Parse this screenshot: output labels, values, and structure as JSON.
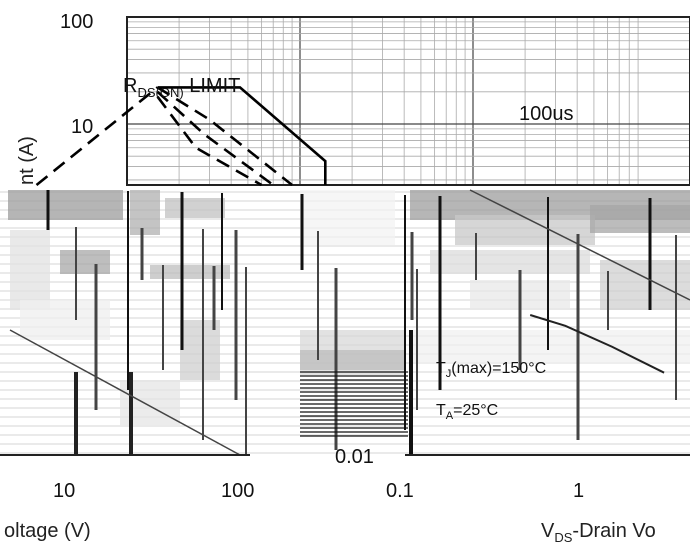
{
  "chart_data": [
    {
      "type": "line",
      "scale": "log-log",
      "grid": true,
      "legend": "none",
      "xlabel": "",
      "ylabel": "nt (A)",
      "xlim": [
        0.1,
        100
      ],
      "ylim": [
        0.01,
        100
      ],
      "y_tick_labels": [
        "100",
        "10"
      ],
      "annotations": [
        {
          "text": "R",
          "sub": "DS(ON)",
          "after": " LIMIT"
        },
        {
          "text": "100us"
        }
      ],
      "series": [
        {
          "style": "solid",
          "x": [
            0.15,
            0.45,
            1.4,
            1.4
          ],
          "y": [
            22,
            22,
            4.5,
            1
          ]
        },
        {
          "style": "dashed",
          "x": [
            0.03,
            0.15
          ],
          "y": [
            0.6,
            22
          ]
        },
        {
          "style": "dashed",
          "x": [
            0.15,
            0.3,
            0.9
          ],
          "y": [
            22,
            11,
            1
          ]
        },
        {
          "style": "dashed",
          "x": [
            0.15,
            0.28,
            0.7
          ],
          "y": [
            20,
            8,
            1
          ]
        },
        {
          "style": "dashed",
          "x": [
            0.15,
            0.25,
            0.6
          ],
          "y": [
            18,
            6,
            1
          ]
        }
      ]
    },
    {
      "type": "line",
      "scale": "log-log",
      "grid": true,
      "legend": "none",
      "xlabel": "oltage (V)",
      "ylabel": "",
      "x_tick_labels": [
        "10",
        "100"
      ],
      "series": []
    },
    {
      "type": "line",
      "scale": "log-log",
      "grid": true,
      "legend": "none",
      "xlabel": "V",
      "xlabel_sub": "DS",
      "xlabel_after": "-Drain Vo",
      "ylabel": "",
      "x_tick_labels": [
        "0.1",
        "1"
      ],
      "y_tick_labels": [
        "0.01"
      ],
      "annotations": [
        {
          "text": "T",
          "sub": "J",
          "after": "(max)=150°C"
        },
        {
          "text": "T",
          "sub": "A",
          "after": "=25°C"
        }
      ],
      "series": [
        {
          "style": "solid",
          "x": [
            0.5,
            0.8,
            1.5,
            3.0
          ],
          "y": [
            1,
            0.7,
            0.35,
            0.15
          ]
        }
      ]
    }
  ]
}
